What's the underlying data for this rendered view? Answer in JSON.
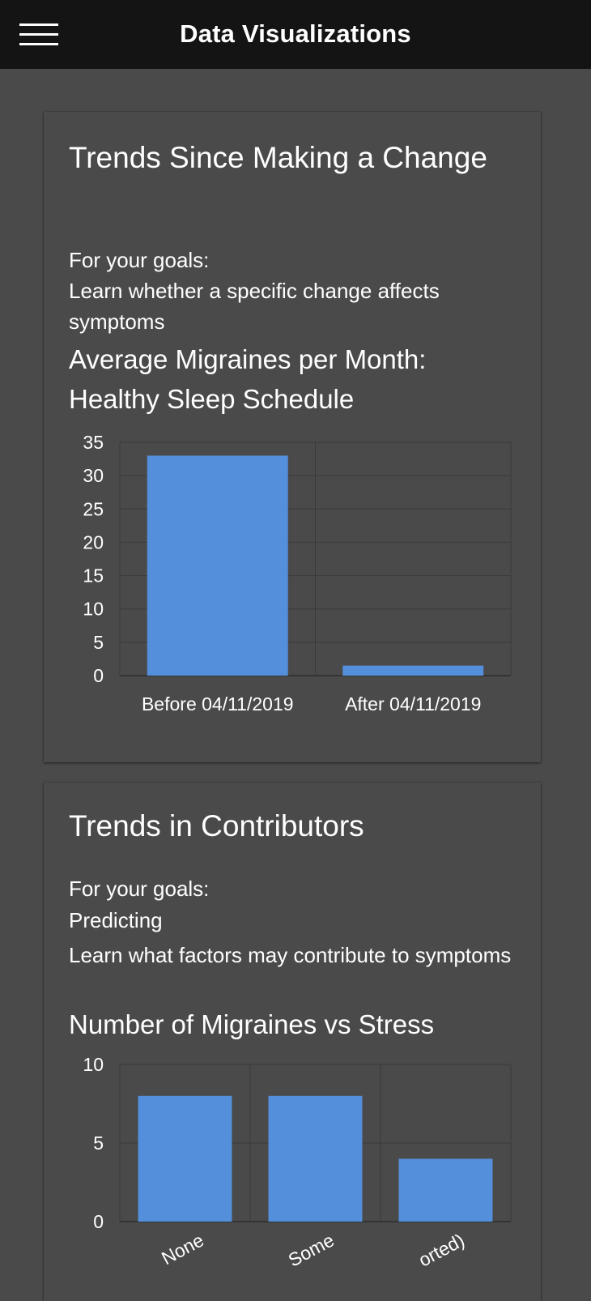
{
  "app": {
    "title": "Data Visualizations"
  },
  "cards": [
    {
      "title": "Trends Since Making a Change",
      "goals_label": "For your goals:",
      "goals": [
        "Learn whether a specific change affects symptoms"
      ],
      "chart_title_line1": "Average Migraines per Month:",
      "chart_title_line2": "Healthy Sleep Schedule"
    },
    {
      "title": "Trends in Contributors",
      "goals_label": "For your goals:",
      "goals": [
        "Predicting",
        "Learn what factors may contribute to symptoms"
      ],
      "chart_title": "Number of Migraines vs Stress"
    }
  ],
  "chart_data": [
    {
      "type": "bar",
      "title": "Average Migraines per Month: Healthy Sleep Schedule",
      "categories": [
        "Before 04/11/2019",
        "After 04/11/2019"
      ],
      "values": [
        33,
        1.5
      ],
      "xlabel": "",
      "ylabel": "",
      "ylim": [
        0,
        35
      ],
      "yticks": [
        0,
        5,
        10,
        15,
        20,
        25,
        30,
        35
      ],
      "grid": true,
      "bar_color": "#548fdc"
    },
    {
      "type": "bar",
      "title": "Number of Migraines vs Stress",
      "categories": [
        "None",
        "Some",
        "orted)"
      ],
      "values": [
        8,
        8,
        4
      ],
      "xlabel": "",
      "ylabel": "",
      "ylim": [
        0,
        10
      ],
      "yticks": [
        0,
        5,
        10
      ],
      "grid": true,
      "bar_color": "#548fdc"
    }
  ],
  "colors": {
    "background": "#4a4a4a",
    "appbar": "#141414",
    "bar": "#548fdc",
    "grid": "#3a3a3a",
    "text": "#ffffff"
  },
  "icons": {
    "menu": "hamburger-menu-icon"
  }
}
